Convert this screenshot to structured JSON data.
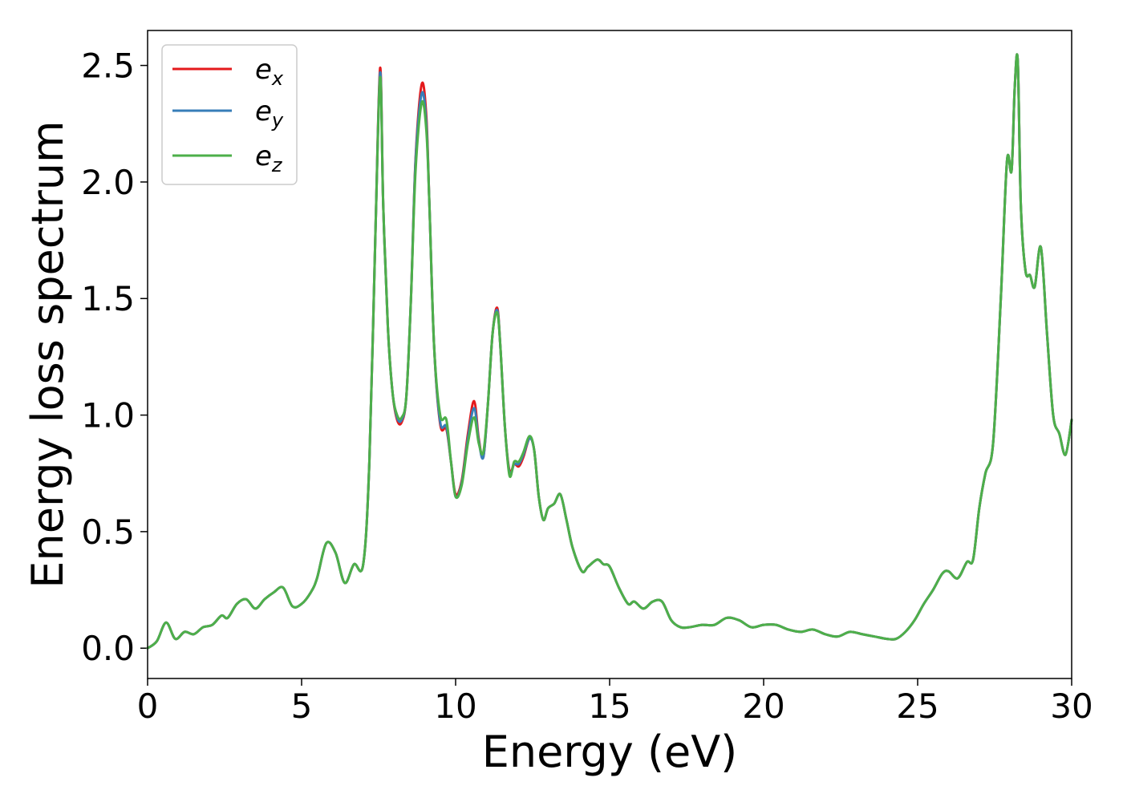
{
  "chart_data": {
    "type": "line",
    "title": "",
    "xlabel": "Energy (eV)",
    "ylabel": "Energy loss spectrum",
    "xlim": [
      0,
      30
    ],
    "ylim": [
      -0.13,
      2.65
    ],
    "xticks": [
      0,
      5,
      10,
      15,
      20,
      25,
      30
    ],
    "xtick_labels": [
      "0",
      "5",
      "10",
      "15",
      "20",
      "25",
      "30"
    ],
    "yticks": [
      0.0,
      0.5,
      1.0,
      1.5,
      2.0,
      2.5
    ],
    "ytick_labels": [
      "0.0",
      "0.5",
      "1.0",
      "1.5",
      "2.0",
      "2.5"
    ],
    "grid": false,
    "legend_position": "top-left",
    "colors": {
      "ex": "#e41a1c",
      "ey": "#377eb8",
      "ez": "#4daf4a"
    },
    "x": [
      0,
      0.3,
      0.6,
      0.9,
      1.2,
      1.5,
      1.8,
      2.1,
      2.4,
      2.6,
      2.9,
      3.2,
      3.5,
      3.8,
      4.1,
      4.4,
      4.7,
      5.0,
      5.3,
      5.5,
      5.8,
      6.1,
      6.4,
      6.7,
      7.0,
      7.2,
      7.4,
      7.55,
      7.65,
      7.8,
      7.95,
      8.1,
      8.25,
      8.4,
      8.55,
      8.7,
      8.9,
      9.05,
      9.15,
      9.3,
      9.5,
      9.7,
      9.85,
      10.0,
      10.2,
      10.4,
      10.6,
      10.75,
      10.9,
      11.05,
      11.2,
      11.35,
      11.45,
      11.6,
      11.75,
      11.9,
      12.05,
      12.2,
      12.4,
      12.55,
      12.7,
      12.85,
      13.0,
      13.2,
      13.4,
      13.6,
      13.8,
      14.1,
      14.3,
      14.6,
      14.8,
      15.0,
      15.3,
      15.6,
      15.8,
      16.1,
      16.4,
      16.7,
      17.0,
      17.3,
      17.6,
      18.0,
      18.4,
      18.8,
      19.2,
      19.6,
      20.0,
      20.4,
      20.8,
      21.2,
      21.6,
      22.0,
      22.4,
      22.8,
      23.2,
      23.6,
      24.0,
      24.3,
      24.6,
      24.9,
      25.2,
      25.5,
      25.8,
      26.0,
      26.3,
      26.6,
      26.8,
      27.0,
      27.2,
      27.45,
      27.7,
      27.9,
      28.05,
      28.15,
      28.25,
      28.35,
      28.5,
      28.65,
      28.8,
      29.0,
      29.2,
      29.4,
      29.6,
      29.8,
      30.0
    ],
    "series": [
      {
        "name": "e_x",
        "values": [
          0.0,
          0.03,
          0.11,
          0.04,
          0.07,
          0.06,
          0.09,
          0.1,
          0.14,
          0.13,
          0.19,
          0.21,
          0.17,
          0.21,
          0.24,
          0.26,
          0.18,
          0.19,
          0.24,
          0.3,
          0.45,
          0.41,
          0.28,
          0.36,
          0.36,
          0.8,
          1.8,
          2.49,
          1.9,
          1.38,
          1.1,
          0.98,
          0.97,
          1.08,
          1.5,
          2.1,
          2.42,
          2.28,
          1.9,
          1.3,
          0.96,
          0.94,
          0.8,
          0.66,
          0.72,
          0.92,
          1.06,
          0.9,
          0.82,
          1.05,
          1.35,
          1.46,
          1.3,
          0.95,
          0.76,
          0.79,
          0.78,
          0.82,
          0.9,
          0.85,
          0.65,
          0.55,
          0.6,
          0.62,
          0.66,
          0.55,
          0.43,
          0.33,
          0.35,
          0.38,
          0.36,
          0.35,
          0.26,
          0.19,
          0.2,
          0.17,
          0.2,
          0.2,
          0.12,
          0.09,
          0.09,
          0.1,
          0.1,
          0.13,
          0.12,
          0.09,
          0.1,
          0.1,
          0.08,
          0.07,
          0.08,
          0.06,
          0.05,
          0.07,
          0.06,
          0.05,
          0.04,
          0.04,
          0.07,
          0.12,
          0.19,
          0.25,
          0.32,
          0.33,
          0.3,
          0.37,
          0.38,
          0.6,
          0.75,
          0.88,
          1.5,
          2.09,
          2.05,
          2.4,
          2.52,
          1.9,
          1.62,
          1.6,
          1.55,
          1.72,
          1.35,
          1.0,
          0.92,
          0.83,
          0.98
        ]
      },
      {
        "name": "e_y",
        "values": [
          0.0,
          0.03,
          0.11,
          0.04,
          0.07,
          0.06,
          0.09,
          0.1,
          0.14,
          0.13,
          0.19,
          0.21,
          0.17,
          0.21,
          0.24,
          0.26,
          0.18,
          0.19,
          0.24,
          0.3,
          0.45,
          0.41,
          0.28,
          0.36,
          0.36,
          0.8,
          1.8,
          2.47,
          1.9,
          1.38,
          1.1,
          0.99,
          0.98,
          1.08,
          1.5,
          2.09,
          2.38,
          2.25,
          1.9,
          1.3,
          0.97,
          0.95,
          0.8,
          0.65,
          0.71,
          0.9,
          1.03,
          0.89,
          0.82,
          1.05,
          1.35,
          1.45,
          1.3,
          0.95,
          0.75,
          0.79,
          0.79,
          0.83,
          0.9,
          0.85,
          0.65,
          0.55,
          0.6,
          0.62,
          0.66,
          0.55,
          0.43,
          0.33,
          0.35,
          0.38,
          0.36,
          0.35,
          0.26,
          0.19,
          0.2,
          0.17,
          0.2,
          0.2,
          0.12,
          0.09,
          0.09,
          0.1,
          0.1,
          0.13,
          0.12,
          0.09,
          0.1,
          0.1,
          0.08,
          0.07,
          0.08,
          0.06,
          0.05,
          0.07,
          0.06,
          0.05,
          0.04,
          0.04,
          0.07,
          0.12,
          0.19,
          0.25,
          0.32,
          0.33,
          0.3,
          0.37,
          0.38,
          0.6,
          0.75,
          0.88,
          1.5,
          2.09,
          2.05,
          2.4,
          2.52,
          1.9,
          1.62,
          1.6,
          1.55,
          1.72,
          1.35,
          1.0,
          0.92,
          0.83,
          0.98
        ]
      },
      {
        "name": "e_z",
        "values": [
          0.0,
          0.03,
          0.11,
          0.04,
          0.07,
          0.06,
          0.09,
          0.1,
          0.14,
          0.13,
          0.19,
          0.21,
          0.17,
          0.21,
          0.24,
          0.26,
          0.18,
          0.19,
          0.24,
          0.3,
          0.45,
          0.41,
          0.28,
          0.36,
          0.36,
          0.8,
          1.8,
          2.45,
          1.9,
          1.38,
          1.1,
          1.0,
          0.99,
          1.08,
          1.5,
          2.05,
          2.34,
          2.22,
          1.9,
          1.3,
          1.0,
          0.98,
          0.8,
          0.65,
          0.7,
          0.88,
          0.99,
          0.88,
          0.84,
          1.05,
          1.35,
          1.44,
          1.3,
          0.95,
          0.74,
          0.8,
          0.8,
          0.84,
          0.91,
          0.85,
          0.65,
          0.55,
          0.6,
          0.62,
          0.66,
          0.55,
          0.43,
          0.33,
          0.35,
          0.38,
          0.36,
          0.35,
          0.26,
          0.19,
          0.2,
          0.17,
          0.2,
          0.2,
          0.12,
          0.09,
          0.09,
          0.1,
          0.1,
          0.13,
          0.12,
          0.09,
          0.1,
          0.1,
          0.08,
          0.07,
          0.08,
          0.06,
          0.05,
          0.07,
          0.06,
          0.05,
          0.04,
          0.04,
          0.07,
          0.12,
          0.19,
          0.25,
          0.32,
          0.33,
          0.3,
          0.37,
          0.38,
          0.6,
          0.75,
          0.88,
          1.5,
          2.09,
          2.05,
          2.4,
          2.52,
          1.9,
          1.62,
          1.6,
          1.55,
          1.72,
          1.35,
          1.0,
          0.92,
          0.83,
          0.98
        ]
      }
    ],
    "legend": [
      {
        "base": "e",
        "sub": "x"
      },
      {
        "base": "e",
        "sub": "y"
      },
      {
        "base": "e",
        "sub": "z"
      }
    ]
  }
}
